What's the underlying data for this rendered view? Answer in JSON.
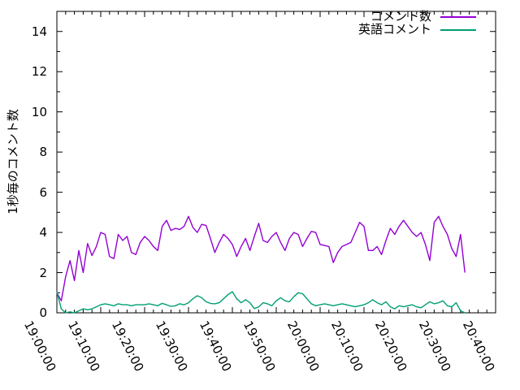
{
  "window": {
    "background": "#ffffff"
  },
  "chart_data": {
    "type": "line",
    "title": "",
    "xlabel": "",
    "ylabel": "1秒毎のコメント数",
    "grid": false,
    "legend_position": "top-right-inside",
    "axis_color": "#000000",
    "text_color": "#000000",
    "ylim": [
      0,
      15
    ],
    "ytick_values": [
      0,
      2,
      4,
      6,
      8,
      10,
      12,
      14
    ],
    "ytick_labels": [
      "0",
      "2",
      "4",
      "6",
      "8",
      "10",
      "12",
      "14"
    ],
    "y_minor_tick_interval": 1,
    "x_axis": {
      "range_minutes": [
        0,
        100
      ],
      "major_tick_interval_minutes": 10,
      "minor_tick_interval_minutes": 2,
      "tick_labels": [
        "19:00:00",
        "19:10:00",
        "19:20:00",
        "19:30:00",
        "19:40:00",
        "19:50:00",
        "20:00:00",
        "20:10:00",
        "20:20:00",
        "20:30:00",
        "20:40:00"
      ]
    },
    "sample_interval_minutes": 1,
    "series": [
      {
        "name": "コメント数",
        "color": "#9400d3",
        "start_minute": 0,
        "values": [
          1.0,
          0.6,
          1.8,
          2.6,
          1.6,
          3.1,
          2.0,
          3.45,
          2.85,
          3.3,
          4.0,
          3.9,
          2.8,
          2.7,
          3.9,
          3.6,
          3.8,
          3.0,
          2.9,
          3.5,
          3.8,
          3.6,
          3.3,
          3.1,
          4.3,
          4.6,
          4.1,
          4.2,
          4.15,
          4.3,
          4.8,
          4.25,
          4.0,
          4.4,
          4.35,
          3.7,
          3.0,
          3.5,
          3.9,
          3.7,
          3.4,
          2.8,
          3.3,
          3.7,
          3.1,
          3.8,
          4.45,
          3.6,
          3.5,
          3.8,
          4.0,
          3.5,
          3.1,
          3.7,
          4.0,
          3.9,
          3.3,
          3.7,
          4.05,
          4.0,
          3.4,
          3.35,
          3.3,
          2.5,
          3.0,
          3.3,
          3.4,
          3.5,
          4.0,
          4.5,
          4.3,
          3.1,
          3.1,
          3.3,
          2.9,
          3.6,
          4.2,
          3.9,
          4.3,
          4.6,
          4.3,
          4.0,
          3.8,
          4.0,
          3.4,
          2.6,
          4.5,
          4.8,
          4.3,
          3.9,
          3.2,
          2.8,
          3.9,
          2.0
        ]
      },
      {
        "name": "英語コメント",
        "color": "#009e73",
        "start_minute": 0,
        "values": [
          1.05,
          0.2,
          0.0,
          0.05,
          0.0,
          0.1,
          0.2,
          0.15,
          0.2,
          0.3,
          0.4,
          0.45,
          0.4,
          0.35,
          0.45,
          0.4,
          0.4,
          0.35,
          0.4,
          0.4,
          0.4,
          0.45,
          0.4,
          0.35,
          0.47,
          0.4,
          0.32,
          0.35,
          0.45,
          0.4,
          0.5,
          0.7,
          0.85,
          0.75,
          0.55,
          0.47,
          0.45,
          0.5,
          0.7,
          0.9,
          1.05,
          0.7,
          0.5,
          0.65,
          0.5,
          0.21,
          0.3,
          0.5,
          0.45,
          0.35,
          0.6,
          0.75,
          0.6,
          0.55,
          0.8,
          1.0,
          0.95,
          0.7,
          0.45,
          0.35,
          0.4,
          0.45,
          0.4,
          0.35,
          0.4,
          0.45,
          0.4,
          0.35,
          0.3,
          0.35,
          0.4,
          0.5,
          0.65,
          0.5,
          0.4,
          0.55,
          0.3,
          0.2,
          0.35,
          0.3,
          0.35,
          0.4,
          0.3,
          0.25,
          0.4,
          0.55,
          0.45,
          0.5,
          0.6,
          0.35,
          0.3,
          0.5,
          0.1,
          0.0
        ]
      }
    ]
  }
}
